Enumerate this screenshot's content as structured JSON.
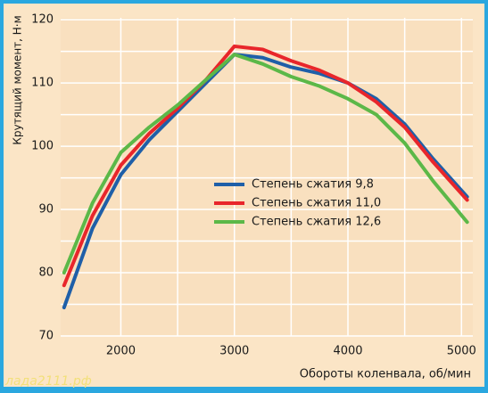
{
  "chart_data": {
    "type": "line",
    "y_label": "Крутящий момент, Н·м",
    "x_label": "Обороты коленвала, об/мин",
    "watermark": "лада2111.рф",
    "x": [
      1500,
      1750,
      2000,
      2250,
      2500,
      2750,
      3000,
      3250,
      3500,
      3750,
      4000,
      4250,
      4500,
      4750,
      5050
    ],
    "series": [
      {
        "name": "Степень сжатия 9,8",
        "color": "#1f5fa8",
        "values": [
          74.5,
          87,
          95.5,
          101,
          105.5,
          110,
          114.5,
          114,
          112.5,
          111.5,
          110,
          107.5,
          103.5,
          98,
          92
        ]
      },
      {
        "name": "Степень сжатия 11,0",
        "color": "#e8262b",
        "values": [
          78,
          89,
          97,
          102,
          106,
          110.5,
          115.8,
          115.3,
          113.5,
          112,
          110,
          107,
          103,
          97.5,
          91.5
        ]
      },
      {
        "name": "Степень сжатия 12,6",
        "color": "#5cb848",
        "values": [
          80,
          91,
          99,
          103,
          106.5,
          110.5,
          114.5,
          113,
          111,
          109.5,
          107.5,
          105,
          100.5,
          94.5,
          88
        ]
      }
    ],
    "xlim": [
      1470,
      5100
    ],
    "ylim": [
      70,
      120.3
    ],
    "xticks": [
      2000,
      3000,
      4000,
      5000
    ],
    "yticks": [
      70,
      80,
      90,
      100,
      110,
      120
    ],
    "minor_xticks": [
      2500,
      3500,
      4500
    ],
    "minor_yticks": [
      75,
      85,
      95,
      105,
      115
    ],
    "grid": true,
    "legend": "center"
  }
}
